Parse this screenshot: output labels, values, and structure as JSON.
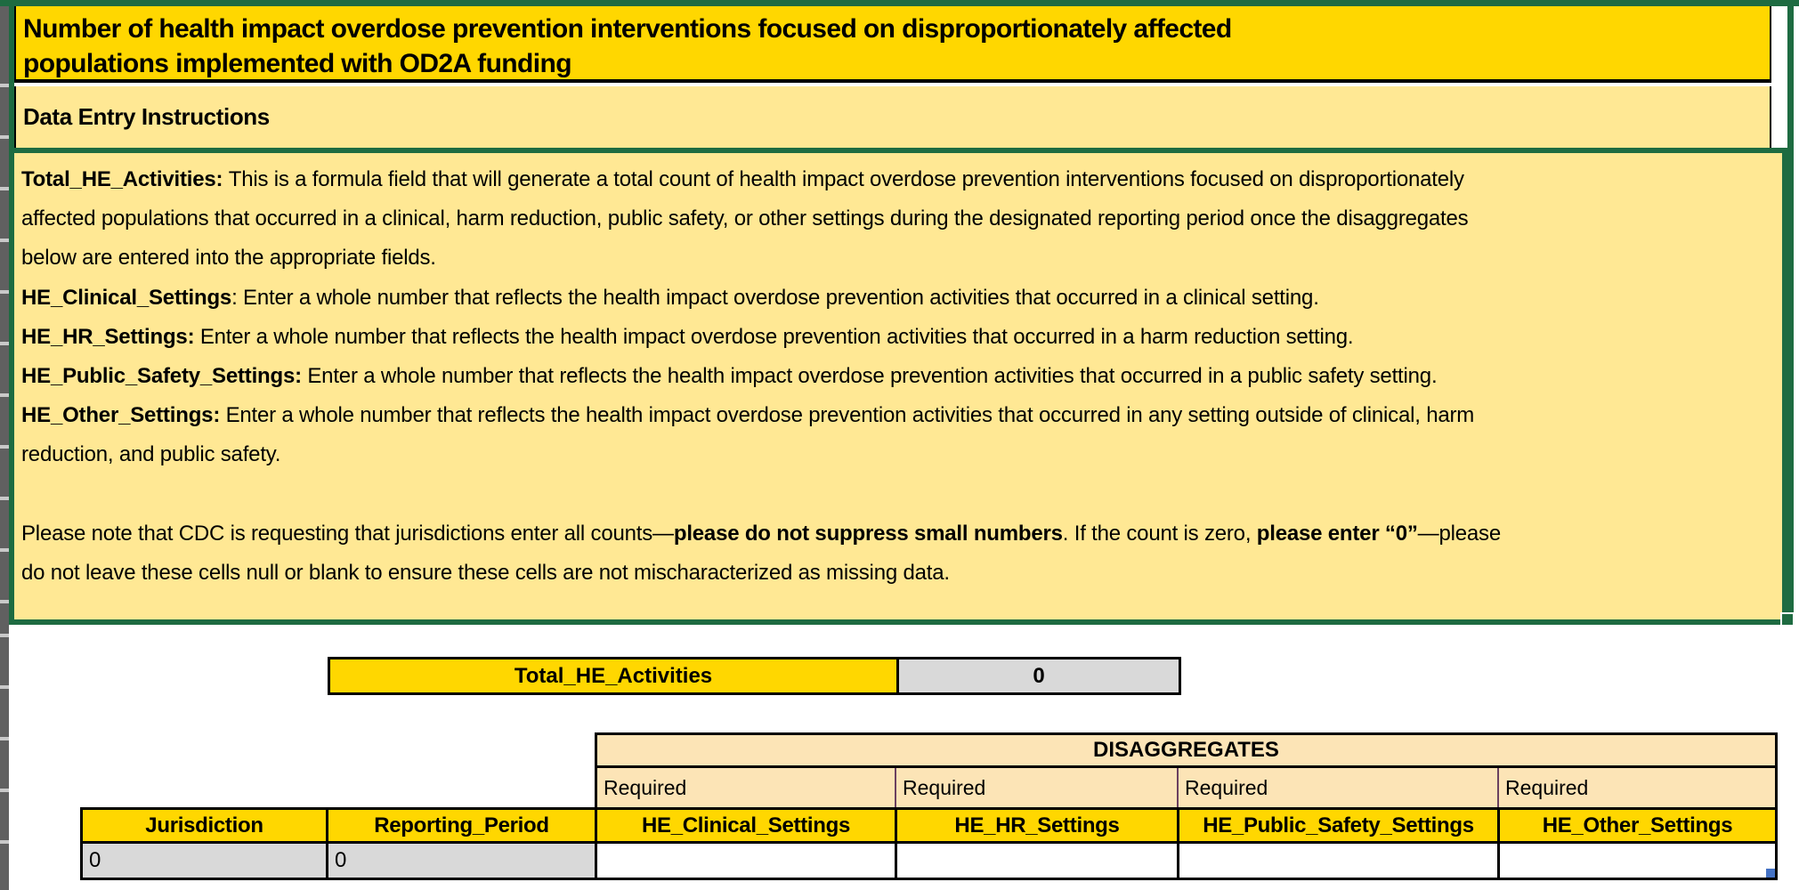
{
  "title": {
    "line1": "Number of health impact overdose prevention interventions focused on disproportionately affected",
    "line2": "populations implemented with OD2A funding"
  },
  "instructions_header": "Data Entry Instructions",
  "instructions": {
    "lines": [
      [
        {
          "b": 1,
          "t": "Total_HE_Activities: "
        },
        {
          "t": "This is a formula field that will generate a total count of health impact overdose prevention interventions focused on disproportionately"
        }
      ],
      [
        {
          "t": "affected populations that occurred in a clinical, harm reduction, public safety, or other settings during the designated reporting period once the disaggregates"
        }
      ],
      [
        {
          "t": "below are entered into the appropriate fields."
        }
      ],
      [
        {
          "b": 1,
          "t": "HE_Clinical_Settings"
        },
        {
          "t": ": Enter a whole number that reflects the health impact overdose prevention activities that occurred in a clinical setting."
        }
      ],
      [
        {
          "b": 1,
          "t": "HE_HR_Settings:"
        },
        {
          "t": " Enter a whole number that reflects the health impact overdose prevention activities that occurred in a harm reduction setting."
        }
      ],
      [
        {
          "b": 1,
          "t": "HE_Public_Safety_Settings:"
        },
        {
          "t": " Enter a whole number that reflects the health impact overdose prevention activities that occurred in a public safety setting."
        }
      ],
      [
        {
          "b": 1,
          "t": "HE_Other_Settings:"
        },
        {
          "t": " Enter a whole number that reflects the health impact overdose prevention activities that occurred in any setting outside of clinical, harm"
        }
      ],
      [
        {
          "t": "reduction, and public safety."
        }
      ],
      [],
      [
        {
          "t": "Please note that CDC is requesting that jurisdictions enter all counts—"
        },
        {
          "b": 1,
          "t": "please do not suppress small numbers"
        },
        {
          "t": ". If the count is zero, "
        },
        {
          "b": 1,
          "t": "please enter “0”"
        },
        {
          "t": "—please"
        }
      ],
      [
        {
          "t": "do not leave these cells null or blank to ensure these cells are not mischaracterized as missing data."
        }
      ]
    ]
  },
  "total": {
    "label": "Total_HE_Activities",
    "value": "0"
  },
  "table": {
    "disaggregates_label": "DISAGGREGATES",
    "required_labels": [
      "Required",
      "Required",
      "Required",
      "Required"
    ],
    "columns": [
      "Jurisdiction",
      "Reporting_Period",
      "HE_Clinical_Settings",
      "HE_HR_Settings",
      "HE_Public_Safety_Settings",
      "HE_Other_Settings"
    ],
    "row_values": [
      "0",
      "0",
      "",
      "",
      "",
      ""
    ]
  },
  "colors": {
    "gold": "#FFD700",
    "light_yellow": "#FFE894",
    "tan": "#FCE4B6",
    "gray_cell": "#D9D9D9",
    "selection_green": "#1E6B41",
    "required_border_purple": "#6B4160",
    "fill_handle_blue": "#4472C4"
  }
}
